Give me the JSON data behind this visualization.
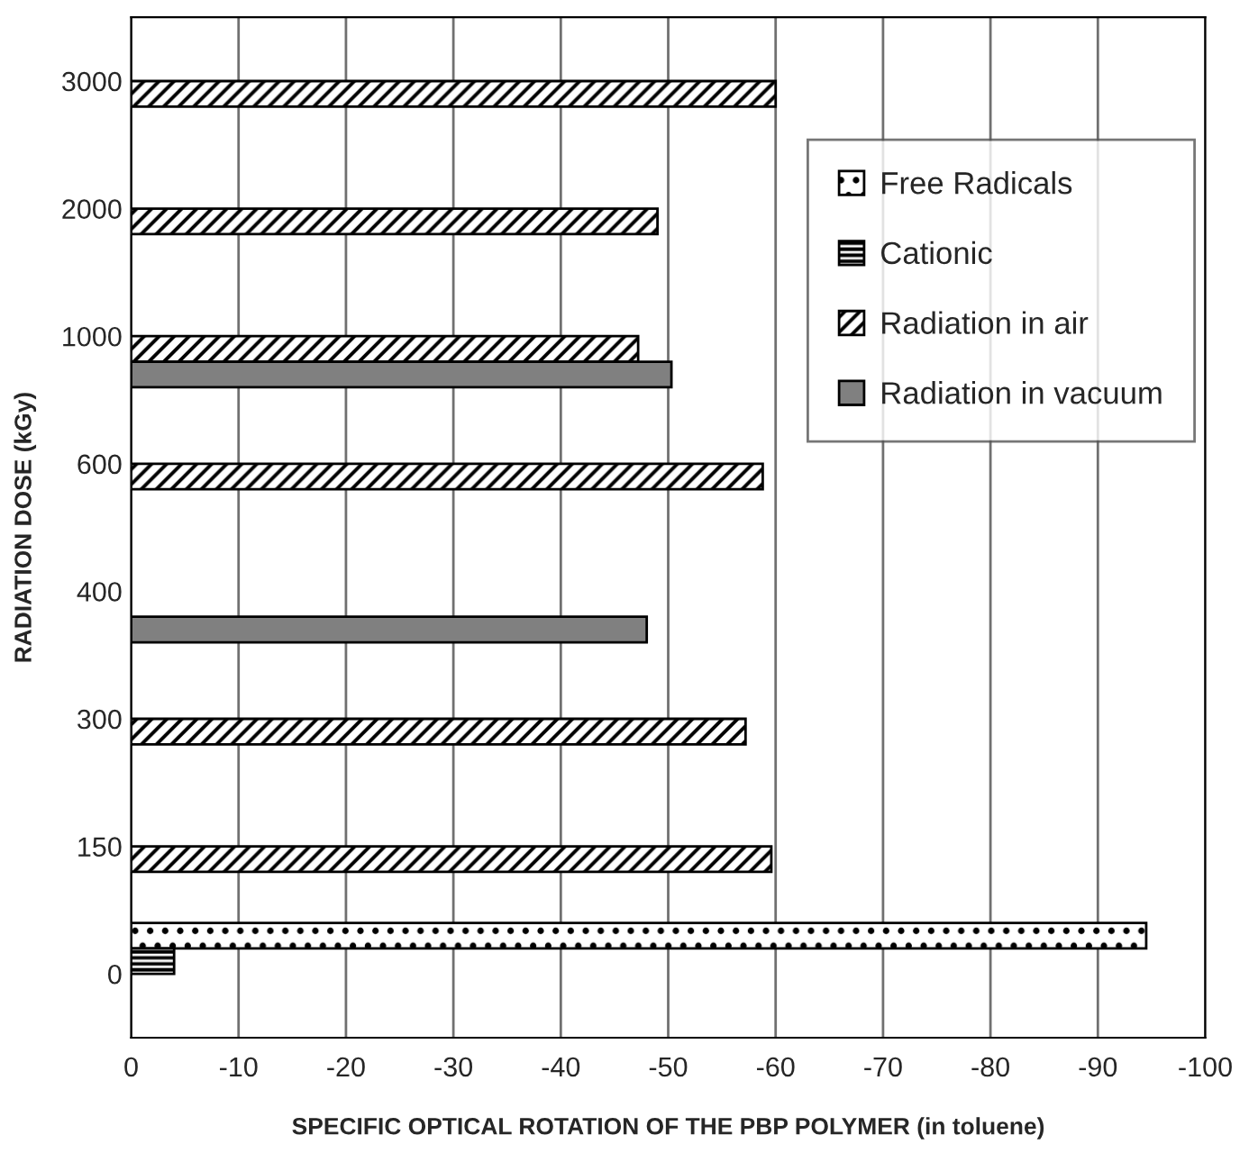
{
  "chart_data": {
    "type": "bar",
    "orientation": "horizontal",
    "xlabel": "SPECIFIC OPTICAL ROTATION OF THE PBP POLYMER (in toluene)",
    "ylabel": "RADIATION DOSE (kGy)",
    "categories": [
      "3000",
      "2000",
      "1000",
      "600",
      "400",
      "300",
      "150",
      "0"
    ],
    "series": [
      {
        "name": "Free Radicals",
        "color": "#000000",
        "values": [
          null,
          null,
          null,
          null,
          null,
          null,
          null,
          -94.5
        ]
      },
      {
        "name": "Cationic",
        "color": "#000000",
        "values": [
          null,
          null,
          null,
          null,
          null,
          null,
          null,
          -4
        ]
      },
      {
        "name": "Radiation in air",
        "color": "#000000",
        "values": [
          -60,
          -49,
          -47.2,
          -58.8,
          null,
          -57.2,
          -59.6,
          null
        ]
      },
      {
        "name": "Radiation in vacuum",
        "color": "#808080",
        "values": [
          null,
          null,
          -50.3,
          null,
          -48,
          null,
          null,
          null
        ]
      }
    ],
    "xlim": [
      0,
      -100
    ],
    "xticks": [
      0,
      -10,
      -20,
      -30,
      -40,
      -50,
      -60,
      -70,
      -80,
      -90,
      -100
    ],
    "grid": "x",
    "legend": "top right"
  }
}
